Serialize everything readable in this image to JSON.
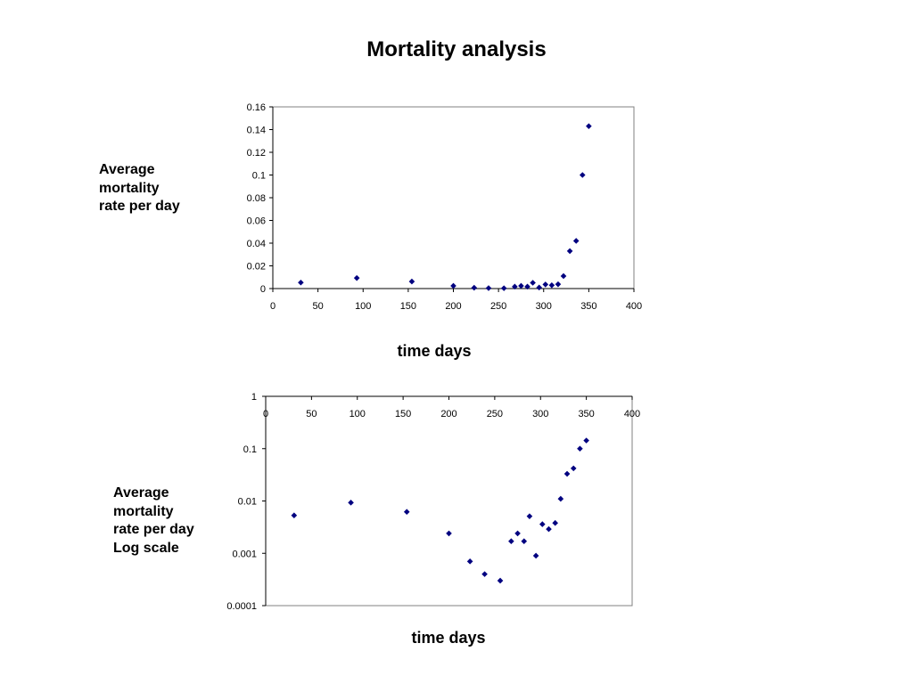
{
  "slide": {
    "title": "Mortality analysis"
  },
  "colors": {
    "marker": "#000080",
    "axis": "#000000",
    "plot_border": "#808080"
  },
  "chart_data": [
    {
      "type": "scatter",
      "ylabel_lines": [
        "Average",
        "mortality",
        "rate per day"
      ],
      "xlabel": "time days",
      "xlim": [
        0,
        400
      ],
      "ylim": [
        0,
        0.16
      ],
      "yscale": "linear",
      "x_ticks": [
        "0",
        "50",
        "100",
        "150",
        "200",
        "250",
        "300",
        "350",
        "400"
      ],
      "y_ticks": [
        "0",
        "0.02",
        "0.04",
        "0.06",
        "0.08",
        "0.1",
        "0.12",
        "0.14",
        "0.16"
      ],
      "grid": false,
      "legend": "none",
      "points": [
        [
          31,
          0.0053
        ],
        [
          93,
          0.0093
        ],
        [
          154,
          0.0062
        ],
        [
          200,
          0.0024
        ],
        [
          223,
          0.0007
        ],
        [
          239,
          0.0004
        ],
        [
          256,
          0.0003
        ],
        [
          268,
          0.0017
        ],
        [
          275,
          0.0024
        ],
        [
          282,
          0.0017
        ],
        [
          288,
          0.0051
        ],
        [
          295,
          0.0009
        ],
        [
          302,
          0.0036
        ],
        [
          309,
          0.0029
        ],
        [
          316,
          0.0038
        ],
        [
          322,
          0.011
        ],
        [
          329,
          0.033
        ],
        [
          336,
          0.042
        ],
        [
          343,
          0.1
        ],
        [
          350,
          0.143
        ]
      ]
    },
    {
      "type": "scatter",
      "ylabel_lines": [
        "Average",
        "mortality",
        "rate per day",
        "Log scale"
      ],
      "xlabel": "time days",
      "xlim": [
        0,
        400
      ],
      "ylim": [
        0.0001,
        1
      ],
      "yscale": "log",
      "x_axis_position": "top",
      "x_ticks": [
        "0",
        "50",
        "100",
        "150",
        "200",
        "250",
        "300",
        "350",
        "400"
      ],
      "y_ticks": [
        "0.0001",
        "0.001",
        "0.01",
        "0.1",
        "1"
      ],
      "grid": false,
      "legend": "none",
      "points": [
        [
          31,
          0.0053
        ],
        [
          93,
          0.0093
        ],
        [
          154,
          0.0062
        ],
        [
          200,
          0.0024
        ],
        [
          223,
          0.0007
        ],
        [
          239,
          0.0004
        ],
        [
          256,
          0.0003
        ],
        [
          268,
          0.0017
        ],
        [
          275,
          0.0024
        ],
        [
          282,
          0.0017
        ],
        [
          288,
          0.0051
        ],
        [
          295,
          0.0009
        ],
        [
          302,
          0.0036
        ],
        [
          309,
          0.0029
        ],
        [
          316,
          0.0038
        ],
        [
          322,
          0.011
        ],
        [
          329,
          0.033
        ],
        [
          336,
          0.042
        ],
        [
          343,
          0.1
        ],
        [
          350,
          0.143
        ]
      ]
    }
  ]
}
